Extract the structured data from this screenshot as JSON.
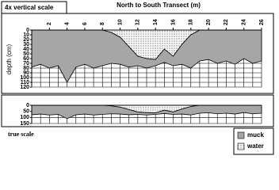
{
  "chart_data": {
    "type": "area",
    "title": "North to South Transect (m)",
    "ylabel": "depth (cm)",
    "y_inverted": true,
    "x": [
      0,
      1,
      2,
      3,
      4,
      5,
      6,
      7,
      8,
      9,
      10,
      11,
      12,
      13,
      14,
      15,
      16,
      17,
      18,
      19,
      20,
      21,
      22,
      23,
      24,
      25,
      26
    ],
    "xlim": [
      0,
      26
    ],
    "xticks": [
      2,
      4,
      6,
      8,
      10,
      12,
      14,
      16,
      18,
      20,
      22,
      24,
      26
    ],
    "series": [
      {
        "name": "water",
        "color": "#ffffff",
        "pattern": "dots",
        "values": [
          0,
          0,
          0,
          0,
          0,
          0,
          0,
          0,
          0,
          5,
          15,
          35,
          55,
          60,
          62,
          40,
          55,
          30,
          10,
          0,
          0,
          0,
          0,
          0,
          0,
          0,
          0
        ]
      },
      {
        "name": "muck",
        "color": "#a6a6a6",
        "values": [
          78,
          72,
          80,
          75,
          110,
          78,
          72,
          80,
          75,
          65,
          57,
          43,
          20,
          20,
          13,
          28,
          20,
          42,
          70,
          65,
          62,
          70,
          65,
          72,
          60,
          70,
          65
        ]
      }
    ],
    "panels": [
      {
        "label": "4x vertical scale",
        "ylim": [
          0,
          120
        ],
        "yticks": [
          0,
          10,
          20,
          30,
          40,
          50,
          60,
          70,
          80,
          90,
          100,
          110,
          120
        ]
      },
      {
        "label": "true scale",
        "ylim": [
          0,
          150
        ],
        "yticks": [
          0,
          50,
          100,
          150
        ]
      }
    ],
    "grid": true
  }
}
